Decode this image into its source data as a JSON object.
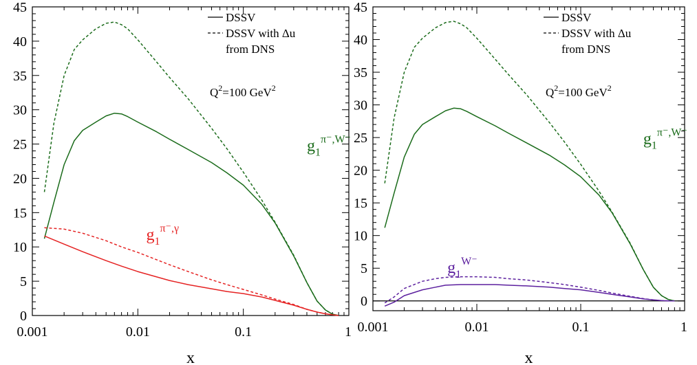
{
  "chart_data": [
    {
      "type": "line",
      "xscale": "log",
      "xlim": [
        0.001,
        1
      ],
      "ylim": [
        0,
        45
      ],
      "xlabel": "x",
      "ylabel": "",
      "xticks": [
        0.001,
        0.01,
        0.1,
        1
      ],
      "xtick_labels": [
        "0.001",
        "0.01",
        "0.1",
        "1"
      ],
      "yticks": [
        0,
        5,
        10,
        15,
        20,
        25,
        30,
        35,
        40,
        45
      ],
      "ytick_labels": [
        "0",
        "5",
        "10",
        "15",
        "20",
        "25",
        "30",
        "35",
        "40",
        "45"
      ],
      "grid": false,
      "legend": {
        "placement": "top-right",
        "entries": [
          {
            "label": "DSSV",
            "style": "solid"
          },
          {
            "label": "DSSV with Δu",
            "style": "dashed"
          },
          {
            "label": "from DNS",
            "style": "none"
          }
        ]
      },
      "annotations": {
        "q2": {
          "base": "Q",
          "sup1": "2",
          "mid": "=100 GeV",
          "sup2": "2"
        },
        "labels": [
          {
            "base": "g",
            "sub": "1",
            "sup": "π⁻,W⁻",
            "color": "#1a6b1a",
            "at": [
              0.4,
              24.0
            ]
          },
          {
            "base": "g",
            "sub": "1",
            "sup": "π⁻,γ",
            "color": "#e52222",
            "at": [
              0.012,
              11.0
            ]
          }
        ]
      },
      "series": [
        {
          "style": "solid",
          "color": "#1a6b1a",
          "x": [
            0.0013,
            0.0016,
            0.002,
            0.0025,
            0.003,
            0.004,
            0.005,
            0.006,
            0.007,
            0.008,
            0.01,
            0.015,
            0.02,
            0.03,
            0.05,
            0.07,
            0.1,
            0.15,
            0.2,
            0.3,
            0.4,
            0.5,
            0.6,
            0.7,
            0.8
          ],
          "y": [
            11.2,
            16.5,
            22.0,
            25.5,
            27.0,
            28.2,
            29.1,
            29.5,
            29.4,
            29.0,
            28.2,
            26.8,
            25.7,
            24.2,
            22.3,
            20.8,
            19.0,
            16.2,
            13.5,
            8.7,
            4.8,
            2.1,
            0.8,
            0.2,
            0.0
          ]
        },
        {
          "style": "dashed",
          "color": "#1a6b1a",
          "x": [
            0.0013,
            0.0016,
            0.002,
            0.0025,
            0.003,
            0.004,
            0.005,
            0.006,
            0.007,
            0.008,
            0.01,
            0.015,
            0.02,
            0.03,
            0.05,
            0.07,
            0.1,
            0.15,
            0.2,
            0.3,
            0.4,
            0.5,
            0.6,
            0.7,
            0.8
          ],
          "y": [
            18.0,
            28.0,
            35.0,
            38.8,
            40.2,
            41.8,
            42.6,
            42.8,
            42.4,
            41.8,
            40.2,
            37.0,
            34.7,
            31.6,
            27.3,
            24.3,
            20.9,
            16.8,
            13.6,
            8.8,
            4.8,
            2.1,
            0.8,
            0.2,
            0.0
          ]
        },
        {
          "style": "solid",
          "color": "#e52222",
          "x": [
            0.0013,
            0.002,
            0.003,
            0.005,
            0.007,
            0.01,
            0.02,
            0.03,
            0.05,
            0.07,
            0.1,
            0.15,
            0.2,
            0.3,
            0.4,
            0.5,
            0.6,
            0.7,
            0.8
          ],
          "y": [
            11.6,
            10.4,
            9.3,
            8.0,
            7.2,
            6.4,
            5.1,
            4.5,
            3.9,
            3.5,
            3.2,
            2.7,
            2.2,
            1.5,
            0.9,
            0.5,
            0.25,
            0.1,
            0.0
          ]
        },
        {
          "style": "dashed",
          "color": "#e52222",
          "x": [
            0.0013,
            0.002,
            0.003,
            0.005,
            0.007,
            0.01,
            0.02,
            0.03,
            0.05,
            0.07,
            0.1,
            0.15,
            0.2,
            0.3,
            0.4,
            0.5,
            0.6,
            0.7,
            0.8
          ],
          "y": [
            12.8,
            12.6,
            12.0,
            10.9,
            10.0,
            9.2,
            7.4,
            6.4,
            5.2,
            4.5,
            3.8,
            3.0,
            2.4,
            1.6,
            0.9,
            0.5,
            0.25,
            0.1,
            0.0
          ]
        }
      ]
    },
    {
      "type": "line",
      "xscale": "log",
      "xlim": [
        0.001,
        1
      ],
      "ylim": [
        -1.5,
        45
      ],
      "xlabel": "x",
      "ylabel": "",
      "xticks": [
        0.001,
        0.01,
        0.1,
        1
      ],
      "xtick_labels": [
        "0.001",
        "0.01",
        "0.1",
        "1"
      ],
      "yticks": [
        0,
        5,
        10,
        15,
        20,
        25,
        30,
        35,
        40,
        45
      ],
      "ytick_labels": [
        "0",
        "5",
        "10",
        "15",
        "20",
        "25",
        "30",
        "35",
        "40",
        "45"
      ],
      "zero_line": true,
      "grid": false,
      "legend": {
        "placement": "top-right",
        "entries": [
          {
            "label": "DSSV",
            "style": "solid"
          },
          {
            "label": "DSSV with Δu",
            "style": "dashed"
          },
          {
            "label": "from DNS",
            "style": "none"
          }
        ]
      },
      "annotations": {
        "q2": {
          "base": "Q",
          "sup1": "2",
          "mid": "=100 GeV",
          "sup2": "2"
        },
        "labels": [
          {
            "base": "g",
            "sub": "1",
            "sup": "π⁻,W⁻",
            "color": "#1a6b1a",
            "at": [
              0.4,
              24.0
            ]
          },
          {
            "base": "g",
            "sub": "1",
            "sup": "W⁻",
            "color": "#5b1f9e",
            "at": [
              0.0052,
              4.3
            ]
          }
        ]
      },
      "series": [
        {
          "style": "solid",
          "color": "#1a6b1a",
          "x": [
            0.0013,
            0.0016,
            0.002,
            0.0025,
            0.003,
            0.004,
            0.005,
            0.006,
            0.007,
            0.008,
            0.01,
            0.015,
            0.02,
            0.03,
            0.05,
            0.07,
            0.1,
            0.15,
            0.2,
            0.3,
            0.4,
            0.5,
            0.6,
            0.7,
            0.8
          ],
          "y": [
            11.2,
            16.5,
            22.0,
            25.5,
            27.0,
            28.2,
            29.1,
            29.5,
            29.4,
            29.0,
            28.2,
            26.8,
            25.7,
            24.2,
            22.3,
            20.8,
            19.0,
            16.2,
            13.5,
            8.7,
            4.8,
            2.1,
            0.8,
            0.2,
            0.0
          ]
        },
        {
          "style": "dashed",
          "color": "#1a6b1a",
          "x": [
            0.0013,
            0.0016,
            0.002,
            0.0025,
            0.003,
            0.004,
            0.005,
            0.006,
            0.007,
            0.008,
            0.01,
            0.015,
            0.02,
            0.03,
            0.05,
            0.07,
            0.1,
            0.15,
            0.2,
            0.3,
            0.4,
            0.5,
            0.6,
            0.7,
            0.8
          ],
          "y": [
            18.0,
            28.0,
            35.0,
            38.8,
            40.2,
            41.8,
            42.6,
            42.8,
            42.4,
            41.8,
            40.2,
            37.0,
            34.7,
            31.6,
            27.3,
            24.3,
            20.9,
            16.8,
            13.6,
            8.8,
            4.8,
            2.1,
            0.8,
            0.2,
            0.0
          ]
        },
        {
          "style": "solid",
          "color": "#5b1f9e",
          "x": [
            0.0013,
            0.0016,
            0.002,
            0.003,
            0.004,
            0.005,
            0.007,
            0.01,
            0.015,
            0.02,
            0.03,
            0.05,
            0.07,
            0.1,
            0.15,
            0.2,
            0.3,
            0.4,
            0.5,
            0.6,
            0.7,
            0.8
          ],
          "y": [
            -0.8,
            -0.2,
            0.8,
            1.7,
            2.1,
            2.4,
            2.5,
            2.5,
            2.5,
            2.4,
            2.3,
            2.1,
            1.9,
            1.7,
            1.3,
            1.0,
            0.6,
            0.3,
            0.15,
            0.05,
            0.0,
            0.0
          ]
        },
        {
          "style": "dashed",
          "color": "#5b1f9e",
          "x": [
            0.0013,
            0.0016,
            0.002,
            0.003,
            0.004,
            0.005,
            0.007,
            0.01,
            0.015,
            0.02,
            0.03,
            0.05,
            0.07,
            0.1,
            0.15,
            0.2,
            0.3,
            0.4,
            0.5,
            0.6,
            0.7,
            0.8
          ],
          "y": [
            -0.3,
            0.6,
            1.9,
            3.0,
            3.4,
            3.6,
            3.7,
            3.7,
            3.6,
            3.4,
            3.2,
            2.8,
            2.5,
            2.1,
            1.6,
            1.2,
            0.7,
            0.35,
            0.15,
            0.05,
            0.0,
            0.0
          ]
        }
      ]
    }
  ]
}
